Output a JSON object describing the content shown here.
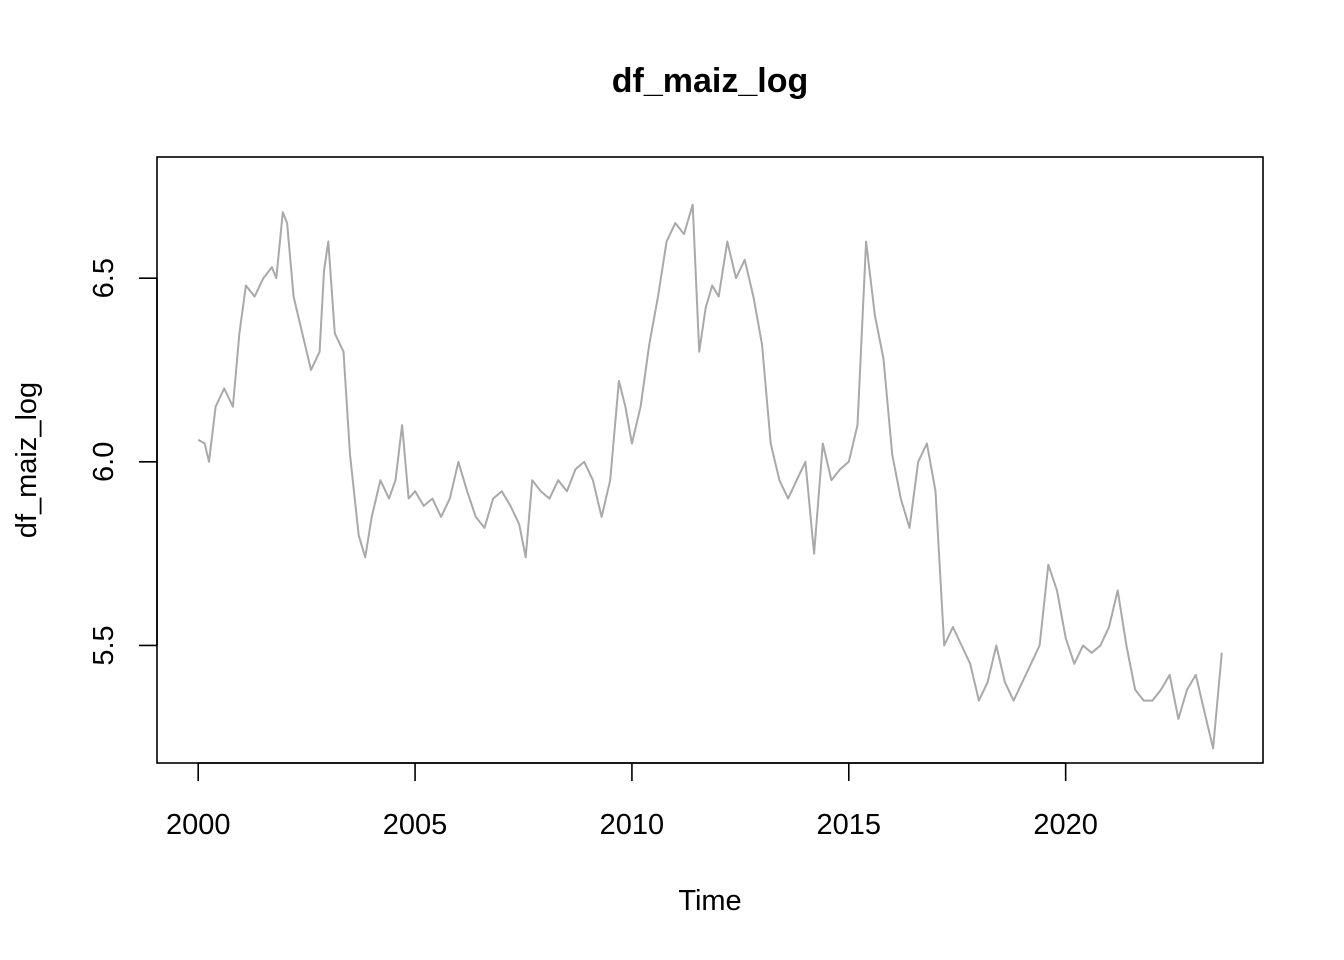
{
  "chart_data": {
    "type": "line",
    "title": "df_maiz_log",
    "xlabel": "Time",
    "ylabel": "df_maiz_log",
    "xlim": [
      1999.05,
      2024.55
    ],
    "ylim": [
      5.18,
      6.83
    ],
    "x_ticks": [
      2000,
      2005,
      2010,
      2015,
      2020
    ],
    "x_tick_labels": [
      "2000",
      "2005",
      "2010",
      "2015",
      "2020"
    ],
    "y_ticks": [
      5.5,
      6.0,
      6.5
    ],
    "y_tick_labels": [
      "5.5",
      "6.0",
      "6.5"
    ],
    "grid": false,
    "legend": "none",
    "line_color": "#a9a9a9",
    "series": [
      {
        "x": [
          2000.0,
          2000.15,
          2000.25,
          2000.4,
          2000.6,
          2000.8,
          2000.95,
          2001.1,
          2001.3,
          2001.5,
          2001.7,
          2001.8,
          2001.95,
          2002.05,
          2002.2,
          2002.4,
          2002.6,
          2002.8,
          2002.9,
          2003.0,
          2003.15,
          2003.35,
          2003.5,
          2003.7,
          2003.85,
          2004.0,
          2004.2,
          2004.4,
          2004.55,
          2004.7,
          2004.85,
          2005.0,
          2005.2,
          2005.4,
          2005.6,
          2005.8,
          2006.0,
          2006.2,
          2006.4,
          2006.6,
          2006.8,
          2007.0,
          2007.2,
          2007.4,
          2007.55,
          2007.7,
          2007.9,
          2008.1,
          2008.3,
          2008.5,
          2008.7,
          2008.9,
          2009.1,
          2009.3,
          2009.5,
          2009.7,
          2009.85,
          2010.0,
          2010.2,
          2010.4,
          2010.6,
          2010.8,
          2011.0,
          2011.2,
          2011.4,
          2011.55,
          2011.7,
          2011.85,
          2012.0,
          2012.2,
          2012.4,
          2012.6,
          2012.8,
          2013.0,
          2013.2,
          2013.4,
          2013.6,
          2013.8,
          2014.0,
          2014.2,
          2014.4,
          2014.6,
          2014.8,
          2015.0,
          2015.2,
          2015.4,
          2015.6,
          2015.8,
          2016.0,
          2016.2,
          2016.4,
          2016.6,
          2016.8,
          2017.0,
          2017.2,
          2017.4,
          2017.6,
          2017.8,
          2018.0,
          2018.2,
          2018.4,
          2018.6,
          2018.8,
          2019.0,
          2019.2,
          2019.4,
          2019.6,
          2019.8,
          2020.0,
          2020.2,
          2020.4,
          2020.6,
          2020.8,
          2021.0,
          2021.2,
          2021.4,
          2021.6,
          2021.8,
          2022.0,
          2022.2,
          2022.4,
          2022.6,
          2022.8,
          2023.0,
          2023.2,
          2023.4,
          2023.6
        ],
        "y": [
          6.06,
          6.05,
          6.0,
          6.15,
          6.2,
          6.15,
          6.35,
          6.48,
          6.45,
          6.5,
          6.53,
          6.5,
          6.68,
          6.65,
          6.45,
          6.35,
          6.25,
          6.3,
          6.52,
          6.6,
          6.35,
          6.3,
          6.02,
          5.8,
          5.74,
          5.85,
          5.95,
          5.9,
          5.95,
          6.1,
          5.9,
          5.92,
          5.88,
          5.9,
          5.85,
          5.9,
          6.0,
          5.92,
          5.85,
          5.82,
          5.9,
          5.92,
          5.88,
          5.83,
          5.74,
          5.95,
          5.92,
          5.9,
          5.95,
          5.92,
          5.98,
          6.0,
          5.95,
          5.85,
          5.95,
          6.22,
          6.15,
          6.05,
          6.15,
          6.32,
          6.45,
          6.6,
          6.65,
          6.62,
          6.7,
          6.3,
          6.42,
          6.48,
          6.45,
          6.6,
          6.5,
          6.55,
          6.45,
          6.32,
          6.05,
          5.95,
          5.9,
          5.95,
          6.0,
          5.75,
          6.05,
          5.95,
          5.98,
          6.0,
          6.1,
          6.6,
          6.4,
          6.28,
          6.02,
          5.9,
          5.82,
          6.0,
          6.05,
          5.92,
          5.5,
          5.55,
          5.5,
          5.45,
          5.35,
          5.4,
          5.5,
          5.4,
          5.35,
          5.4,
          5.45,
          5.5,
          5.72,
          5.65,
          5.52,
          5.45,
          5.5,
          5.48,
          5.5,
          5.55,
          5.65,
          5.5,
          5.38,
          5.35,
          5.35,
          5.38,
          5.42,
          5.3,
          5.38,
          5.42,
          5.32,
          5.22,
          5.48
        ]
      }
    ]
  }
}
